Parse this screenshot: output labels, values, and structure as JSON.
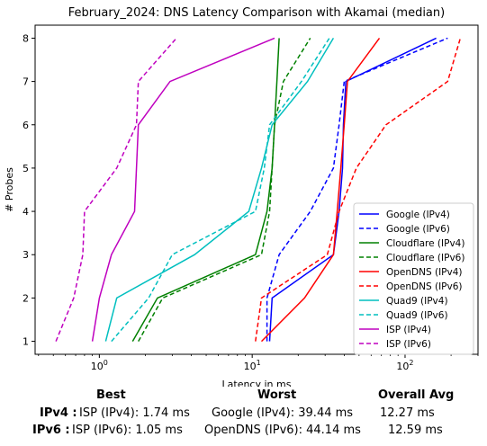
{
  "chart_data": {
    "type": "line",
    "title": "February_2024: DNS Latency Comparison with Akamai (median)",
    "xlabel": "Latency in ms",
    "ylabel": "# Probes",
    "xscale": "log",
    "xlim": [
      0.38,
      300
    ],
    "ylim": [
      0.7,
      8.3
    ],
    "x_tick_labels": [
      "10^0",
      "10^1",
      "10^2"
    ],
    "x_ticks": [
      1,
      10,
      100
    ],
    "y_ticks": [
      1,
      2,
      3,
      4,
      5,
      6,
      7,
      8
    ],
    "grid": false,
    "legend_position": "lower right",
    "series": [
      {
        "name": "Google (IPv4)",
        "color": "#0000ff",
        "dash": "solid",
        "points": [
          [
            13.0,
            1
          ],
          [
            13.5,
            2
          ],
          [
            34.0,
            3
          ],
          [
            37.0,
            4
          ],
          [
            39.0,
            5
          ],
          [
            39.5,
            6
          ],
          [
            41.0,
            7
          ],
          [
            160,
            8
          ]
        ]
      },
      {
        "name": "Google (IPv6)",
        "color": "#0000ff",
        "dash": "dashed",
        "points": [
          [
            12.5,
            1
          ],
          [
            12.5,
            2
          ],
          [
            15.0,
            3
          ],
          [
            24.0,
            4
          ],
          [
            34.0,
            5
          ],
          [
            37.0,
            6
          ],
          [
            40.0,
            7
          ],
          [
            190,
            8
          ]
        ]
      },
      {
        "name": "Cloudflare (IPv4)",
        "color": "#008000",
        "dash": "solid",
        "points": [
          [
            1.65,
            1
          ],
          [
            2.4,
            2
          ],
          [
            10.5,
            3
          ],
          [
            12.5,
            4
          ],
          [
            13.5,
            5
          ],
          [
            14.0,
            6
          ],
          [
            14.5,
            7
          ],
          [
            15.0,
            8
          ]
        ]
      },
      {
        "name": "Cloudflare (IPv6)",
        "color": "#008000",
        "dash": "dashed",
        "points": [
          [
            1.8,
            1
          ],
          [
            2.6,
            2
          ],
          [
            11.5,
            3
          ],
          [
            13.0,
            4
          ],
          [
            13.5,
            5
          ],
          [
            14.0,
            6
          ],
          [
            16.0,
            7
          ],
          [
            24.0,
            8
          ]
        ]
      },
      {
        "name": "OpenDNS (IPv4)",
        "color": "#ff0000",
        "dash": "solid",
        "points": [
          [
            11.5,
            1
          ],
          [
            22.0,
            2
          ],
          [
            34.0,
            3
          ],
          [
            36.0,
            4
          ],
          [
            38.0,
            5
          ],
          [
            40.0,
            6
          ],
          [
            42.0,
            7
          ],
          [
            68.0,
            8
          ]
        ]
      },
      {
        "name": "OpenDNS (IPv6)",
        "color": "#ff0000",
        "dash": "dashed",
        "points": [
          [
            10.5,
            1
          ],
          [
            11.5,
            2
          ],
          [
            31.0,
            3
          ],
          [
            37.0,
            4
          ],
          [
            48.0,
            5
          ],
          [
            75.0,
            6
          ],
          [
            190,
            7
          ],
          [
            230,
            8
          ]
        ]
      },
      {
        "name": "Quad9 (IPv4)",
        "color": "#00bfbf",
        "dash": "solid",
        "points": [
          [
            1.1,
            1
          ],
          [
            1.3,
            2
          ],
          [
            4.2,
            3
          ],
          [
            9.5,
            4
          ],
          [
            11.5,
            5
          ],
          [
            13.5,
            6
          ],
          [
            23.0,
            7
          ],
          [
            34.0,
            8
          ]
        ]
      },
      {
        "name": "Quad9 (IPv6)",
        "color": "#00bfbf",
        "dash": "dashed",
        "points": [
          [
            1.2,
            1
          ],
          [
            2.1,
            2
          ],
          [
            3.0,
            3
          ],
          [
            10.5,
            4
          ],
          [
            12.0,
            5
          ],
          [
            13.0,
            6
          ],
          [
            21.0,
            7
          ],
          [
            32.0,
            8
          ]
        ]
      },
      {
        "name": "ISP (IPv4)",
        "color": "#bf00bf",
        "dash": "solid",
        "points": [
          [
            0.9,
            1
          ],
          [
            1.0,
            2
          ],
          [
            1.2,
            3
          ],
          [
            1.7,
            4
          ],
          [
            1.75,
            5
          ],
          [
            1.8,
            6
          ],
          [
            2.9,
            7
          ],
          [
            14.0,
            8
          ]
        ]
      },
      {
        "name": "ISP (IPv6)",
        "color": "#bf00bf",
        "dash": "dashed",
        "points": [
          [
            0.52,
            1
          ],
          [
            0.68,
            2
          ],
          [
            0.78,
            3
          ],
          [
            0.8,
            4
          ],
          [
            1.3,
            5
          ],
          [
            1.75,
            6
          ],
          [
            1.8,
            7
          ],
          [
            3.2,
            8
          ]
        ]
      }
    ]
  },
  "summary": {
    "headers": {
      "best": "Best",
      "worst": "Worst",
      "avg": "Overall Avg"
    },
    "rows": [
      {
        "label": "IPv4 :",
        "best": "ISP (IPv4): 1.74 ms",
        "worst": "Google (IPv4): 39.44 ms",
        "avg": "12.27 ms"
      },
      {
        "label": "IPv6 :",
        "best": "ISP (IPv6): 1.05 ms",
        "worst": "OpenDNS (IPv6): 44.14 ms",
        "avg": "12.59 ms"
      }
    ]
  }
}
